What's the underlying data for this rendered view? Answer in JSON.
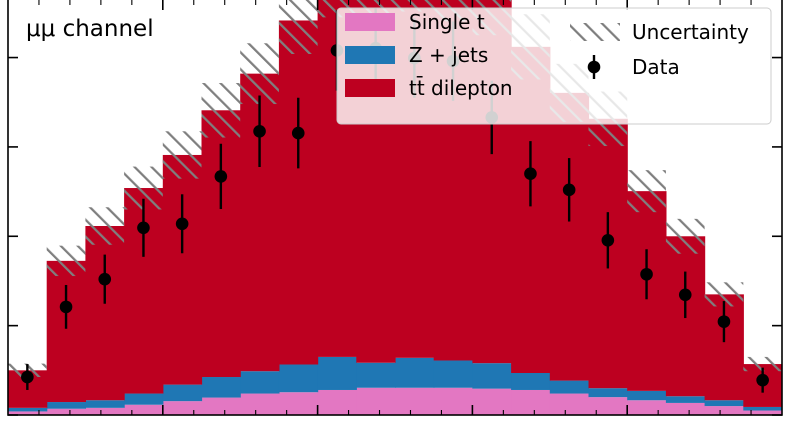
{
  "chart_data": {
    "type": "bar",
    "subtype": "stacked-step-histogram",
    "title": "",
    "xlabel": "",
    "ylabel": "",
    "annotation": "μμ channel",
    "n_bins": 20,
    "ylim": [
      0,
      100
    ],
    "stack_order": [
      "Single t",
      "Z + jets",
      "tt̄ dilepton"
    ],
    "series": [
      {
        "name": "Single t",
        "color": "#e377c2",
        "values": [
          0.8,
          1.4,
          1.6,
          2.3,
          3.1,
          3.9,
          4.8,
          5.1,
          5.6,
          6.1,
          6.1,
          6.1,
          5.9,
          5.6,
          4.8,
          4.0,
          3.3,
          2.7,
          2.0,
          1.0
        ]
      },
      {
        "name": "Z + jets",
        "color": "#1f77b4",
        "values": [
          0.8,
          1.5,
          1.7,
          2.5,
          3.7,
          4.6,
          5.0,
          6.2,
          7.4,
          5.6,
          6.7,
          6.1,
          5.7,
          3.8,
          2.9,
          2.0,
          2.1,
          1.5,
          1.3,
          0.8
        ]
      },
      {
        "name": "tt̄ dilepton",
        "color": "#bd0020",
        "values": [
          8.4,
          31.6,
          39.0,
          46.0,
          51.4,
          59.7,
          66.6,
          77.0,
          84.0,
          84.9,
          85.7,
          84.0,
          81.4,
          73.0,
          64.4,
          60.3,
          44.7,
          35.8,
          23.7,
          9.6
        ]
      }
    ],
    "uncertainty": {
      "name": "Uncertainty",
      "half_width": [
        1.5,
        3.4,
        4.2,
        4.8,
        5.3,
        6.1,
        6.8,
        7.5,
        8.0,
        8.0,
        8.2,
        8.1,
        8.0,
        7.3,
        6.5,
        6.1,
        4.7,
        3.9,
        2.7,
        1.6
      ]
    },
    "data": {
      "name": "Data",
      "values": [
        8.5,
        24.2,
        30.4,
        41.9,
        42.8,
        53.4,
        63.5,
        63.1,
        81.6,
        82.1,
        79.9,
        79.2,
        66.6,
        54.0,
        50.4,
        39.1,
        31.5,
        26.9,
        20.9,
        7.8
      ],
      "errors": [
        2.9,
        4.9,
        5.5,
        6.5,
        6.6,
        7.3,
        8.0,
        7.9,
        9.0,
        9.1,
        8.9,
        8.9,
        8.2,
        7.3,
        7.1,
        6.3,
        5.6,
        5.2,
        4.6,
        2.8
      ]
    },
    "legend": {
      "placement": "top-right",
      "entries": [
        "Single t",
        "Z + jets",
        "tt̄ dilepton",
        "Uncertainty",
        "Data"
      ]
    }
  }
}
